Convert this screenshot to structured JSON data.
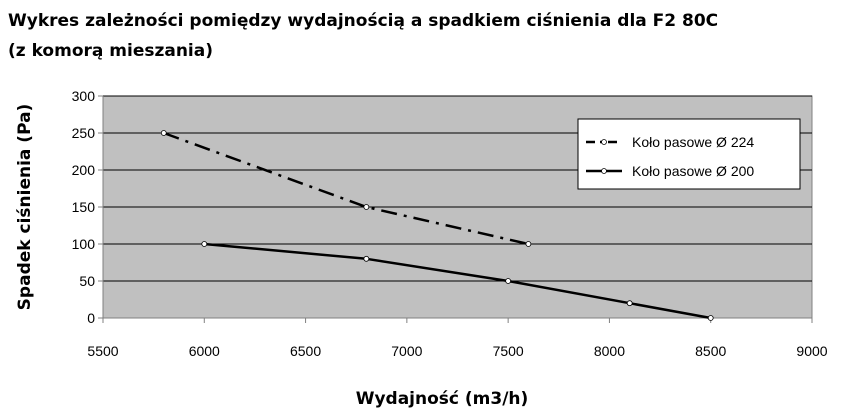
{
  "chart_data": {
    "type": "line",
    "title_line1": "Wykres zależności pomiędzy wydajnością a spadkiem ciśnienia dla F2 80C",
    "title_line2": "(z komorą mieszania)",
    "xlabel": "Wydajność (m3/h)",
    "ylabel": "Spadek ciśnienia (Pa)",
    "xlim": [
      5500,
      9000
    ],
    "ylim": [
      0,
      300
    ],
    "x_ticks": [
      5500,
      6000,
      6500,
      7000,
      7500,
      8000,
      8500,
      9000
    ],
    "y_ticks": [
      0,
      50,
      100,
      150,
      200,
      250,
      300
    ],
    "grid": true,
    "plot_background": "#c0c0c0",
    "legend_position": "top-right",
    "series": [
      {
        "name": "Koło pasowe  Ø  224",
        "style": "dash-dot",
        "color": "#000000",
        "x": [
          5800,
          6800,
          7600
        ],
        "y": [
          250,
          150,
          100
        ]
      },
      {
        "name": "Koło pasowe  Ø  200",
        "style": "solid",
        "color": "#000000",
        "x": [
          6000,
          6800,
          7500,
          8100,
          8500
        ],
        "y": [
          100,
          80,
          50,
          20,
          0
        ]
      }
    ]
  }
}
